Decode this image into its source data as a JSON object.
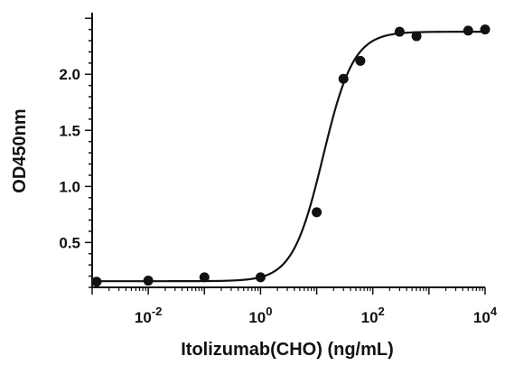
{
  "chart_data": {
    "type": "scatter",
    "title": "",
    "xlabel": "Itolizumab(CHO) (ng/mL)",
    "ylabel": "OD450nm",
    "x_scale": "log10",
    "xlim": [
      0.001,
      10000
    ],
    "ylim": [
      0.1,
      2.55
    ],
    "x_ticks": [
      {
        "value": 0.01,
        "base": "10",
        "exp": "-2"
      },
      {
        "value": 1,
        "base": "10",
        "exp": "0"
      },
      {
        "value": 100,
        "base": "10",
        "exp": "2"
      },
      {
        "value": 10000,
        "base": "10",
        "exp": "4"
      }
    ],
    "y_ticks": [
      "0.5",
      "1.0",
      "1.5",
      "2.0"
    ],
    "series": [
      {
        "points": [
          {
            "x": 0.0012,
            "y": 0.15
          },
          {
            "x": 0.01,
            "y": 0.16
          },
          {
            "x": 0.1,
            "y": 0.19
          },
          {
            "x": 1.0,
            "y": 0.19
          },
          {
            "x": 10,
            "y": 0.77
          },
          {
            "x": 30,
            "y": 1.96
          },
          {
            "x": 60,
            "y": 2.12
          },
          {
            "x": 300,
            "y": 2.38
          },
          {
            "x": 600,
            "y": 2.34
          },
          {
            "x": 5000,
            "y": 2.39
          },
          {
            "x": 10000,
            "y": 2.4
          }
        ],
        "fit": {
          "model": "4PL",
          "bottom": 0.155,
          "top": 2.38,
          "ec50": 13,
          "hill": 1.6
        }
      }
    ],
    "grid": false,
    "legend": "none",
    "colors": {
      "marker": "#111111",
      "line": "#111111"
    }
  }
}
